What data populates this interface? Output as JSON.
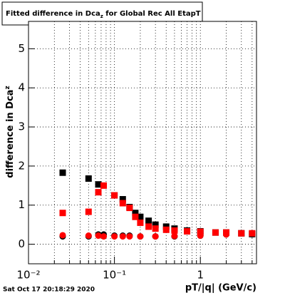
{
  "chart_data": {
    "type": "scatter",
    "title": "Fitted difference in Dca",
    "title_sub": "z",
    "title_rest": " for Global Rec All EtapT",
    "x_label": "pT/|q| (GeV/c)",
    "y_label": "difference in Dca",
    "y_label_sub": "z",
    "footer": "Sat Oct 17 20:18:29 2020",
    "x_log": true,
    "grid": true,
    "xlim": [
      0.01,
      4.5
    ],
    "ylim": [
      -0.5,
      5.7
    ],
    "xticks": [
      {
        "value": 0.01,
        "label": "10⁻²"
      },
      {
        "value": 0.1,
        "label": "10⁻¹"
      },
      1
    ],
    "xminorticks": [
      0.02,
      0.03,
      0.04,
      0.05,
      0.06,
      0.07,
      0.08,
      0.09,
      0.2,
      0.3,
      0.4,
      0.5,
      0.6,
      0.7,
      0.8,
      0.9,
      2,
      3,
      4
    ],
    "yticks": [
      0,
      1,
      2,
      3,
      4,
      5
    ],
    "series": [
      {
        "color": "#000000",
        "marker": "square",
        "x": [
          0.025,
          0.05,
          0.065,
          0.1,
          0.125,
          0.15,
          0.175,
          0.2,
          0.25,
          0.3,
          0.4,
          0.5,
          0.7,
          1,
          1.5,
          2,
          3,
          4
        ],
        "values": [
          1.83,
          1.68,
          1.53,
          1.25,
          1.15,
          0.95,
          0.8,
          0.7,
          0.6,
          0.5,
          0.45,
          0.4,
          0.35,
          0.33,
          0.3,
          0.3,
          0.28,
          0.26
        ]
      },
      {
        "color": "#000000",
        "marker": "circle",
        "x": [
          0.025,
          0.05,
          0.065,
          0.075,
          0.1,
          0.125,
          0.15,
          0.2,
          0.3,
          0.5,
          1,
          2,
          4
        ],
        "values": [
          0.2,
          0.2,
          0.25,
          0.25,
          0.22,
          0.22,
          0.22,
          0.2,
          0.2,
          0.2,
          0.22,
          0.25,
          0.25
        ]
      },
      {
        "color": "#ff0000",
        "marker": "square",
        "x": [
          0.025,
          0.05,
          0.065,
          0.075,
          0.1,
          0.125,
          0.15,
          0.175,
          0.2,
          0.25,
          0.3,
          0.4,
          0.5,
          0.7,
          1,
          1.5,
          2,
          3,
          4
        ],
        "values": [
          0.8,
          0.83,
          1.33,
          1.5,
          1.25,
          1.05,
          0.93,
          0.7,
          0.55,
          0.45,
          0.4,
          0.37,
          0.35,
          0.33,
          0.32,
          0.3,
          0.3,
          0.28,
          0.28
        ]
      },
      {
        "color": "#ff0000",
        "marker": "circle",
        "x": [
          0.025,
          0.05,
          0.065,
          0.075,
          0.1,
          0.125,
          0.15,
          0.2,
          0.3,
          0.5,
          1,
          2,
          4
        ],
        "values": [
          0.23,
          0.22,
          0.22,
          0.2,
          0.2,
          0.2,
          0.2,
          0.2,
          0.2,
          0.21,
          0.22,
          0.25,
          0.28
        ]
      }
    ]
  }
}
